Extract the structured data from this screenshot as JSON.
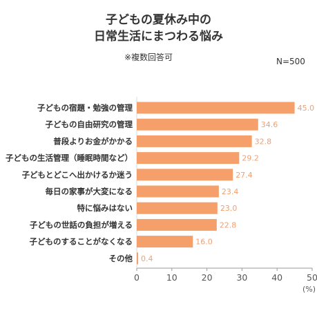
{
  "chart_data": {
    "type": "bar",
    "orientation": "horizontal",
    "title_line1": "子どもの夏休み中の",
    "title_line2": "日常生活にまつわる悩み",
    "subtitle": "※複数回答可",
    "sample": "N=500",
    "unit_label": "(%)",
    "categories": [
      "子どもの宿題・勉強の管理",
      "子どもの自由研究の管理",
      "普段よりお金がかかる",
      "子どもの生活管理（睡眠時間など）",
      "子どもとどこへ出かけるか迷う",
      "毎日の家事が大変になる",
      "特に悩みはない",
      "子どもの世話の負担が増える",
      "子どものすることがなくなる",
      "その他"
    ],
    "values": [
      45.0,
      34.6,
      32.8,
      29.2,
      27.4,
      23.4,
      23.0,
      22.8,
      16.0,
      0.4
    ],
    "value_labels": [
      "45.0",
      "34.6",
      "32.8",
      "29.2",
      "27.4",
      "23.4",
      "23.0",
      "22.8",
      "16.0",
      "0.4"
    ],
    "xlim": [
      0,
      50
    ],
    "xticks": [
      "0",
      "10",
      "20",
      "30",
      "40",
      "50"
    ],
    "bar_color": "#f5a06a",
    "label_color": "#f0a070",
    "axis_color": "#999999"
  }
}
